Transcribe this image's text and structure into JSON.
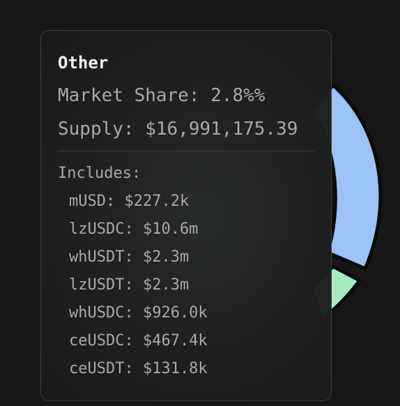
{
  "tooltip": {
    "title": "Other",
    "market_share": "Market Share: 2.8%%",
    "supply": "Supply: $16,991,175.39",
    "includes_label": "Includes:",
    "items": [
      "mUSD: $227.2k",
      "lzUSDC: $10.6m",
      "whUSDT: $2.3m",
      "lzUSDT: $2.3m",
      "whUSDC: $926.0k",
      "ceUSDC: $467.4k",
      "ceUSDT: $131.8k"
    ]
  },
  "pie_colors": {
    "blue_slice": "#9cc3f5",
    "green_slice": "#a6ebc0",
    "outline": "#0a0a0a"
  }
}
